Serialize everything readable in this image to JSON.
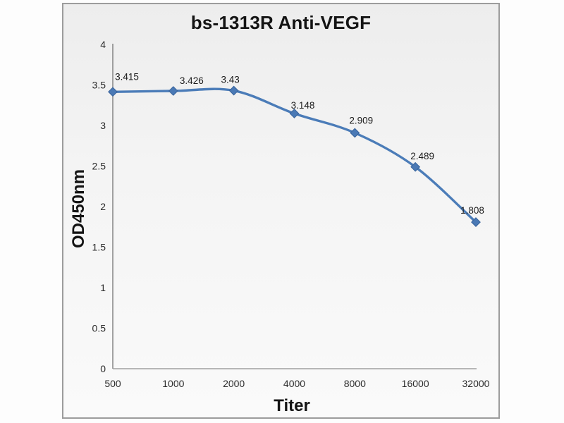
{
  "chart_data": {
    "type": "line",
    "title": "bs-1313R Anti-VEGF",
    "xlabel": "Titer",
    "ylabel": "OD450nm",
    "categories": [
      "500",
      "1000",
      "2000",
      "4000",
      "8000",
      "16000",
      "32000"
    ],
    "values": [
      3.415,
      3.426,
      3.43,
      3.148,
      2.909,
      2.489,
      1.808
    ],
    "point_labels": [
      "3.415",
      "3.426",
      "3.43",
      "3.148",
      "2.909",
      "2.489",
      "1.808"
    ],
    "y_ticks": [
      4,
      3.5,
      3,
      2.5,
      2,
      1.5,
      1,
      0.5,
      0
    ],
    "y_tick_labels": [
      "4",
      "3.5",
      "3",
      "2.5",
      "2",
      "1.5",
      "1",
      "0.5",
      "0"
    ],
    "ylim": [
      0,
      4
    ],
    "x_scale": "log2-categorical",
    "grid": false,
    "legend": "none",
    "smooth_line": true,
    "marker": "diamond",
    "style": {
      "line_color": "#4b7cb8",
      "marker_fill": "#4a79b5",
      "marker_edge": "#38639b",
      "y_axis_color": "#7d7d7d",
      "x_axis_color": "#9f9f9f",
      "tick_label_color": "#2b2b2b",
      "point_label_color": "#1c1c1c",
      "title_color": "#141414",
      "panel_border_color": "#9c9c9c"
    }
  }
}
